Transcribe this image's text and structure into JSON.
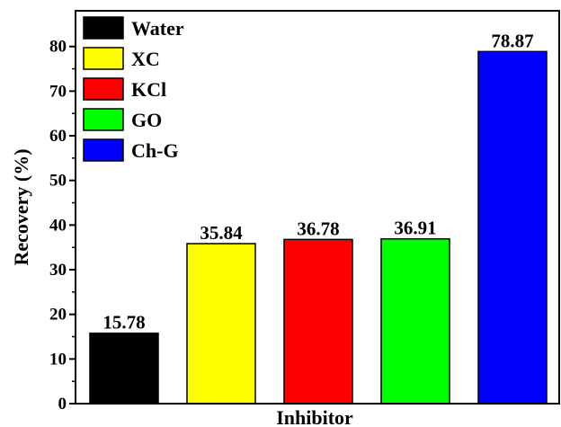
{
  "chart_data": {
    "type": "bar",
    "categories": [
      "Water",
      "XC",
      "KCl",
      "GO",
      "Ch-G"
    ],
    "values": [
      15.78,
      35.84,
      36.78,
      36.91,
      78.87
    ],
    "value_labels": [
      "15.78",
      "35.84",
      "36.78",
      "36.91",
      "78.87"
    ],
    "colors": [
      "#000000",
      "#ffff00",
      "#ff0000",
      "#00ff00",
      "#0000ff"
    ],
    "xlabel": "Inhibitor",
    "ylabel": "Recovery (%)",
    "ylim": [
      0,
      88
    ],
    "yticks": [
      0,
      10,
      20,
      30,
      40,
      50,
      60,
      70,
      80
    ],
    "grid": false,
    "legend": {
      "placement": "top-left",
      "entries": [
        "Water",
        "XC",
        "KCl",
        "GO",
        "Ch-G"
      ]
    }
  }
}
